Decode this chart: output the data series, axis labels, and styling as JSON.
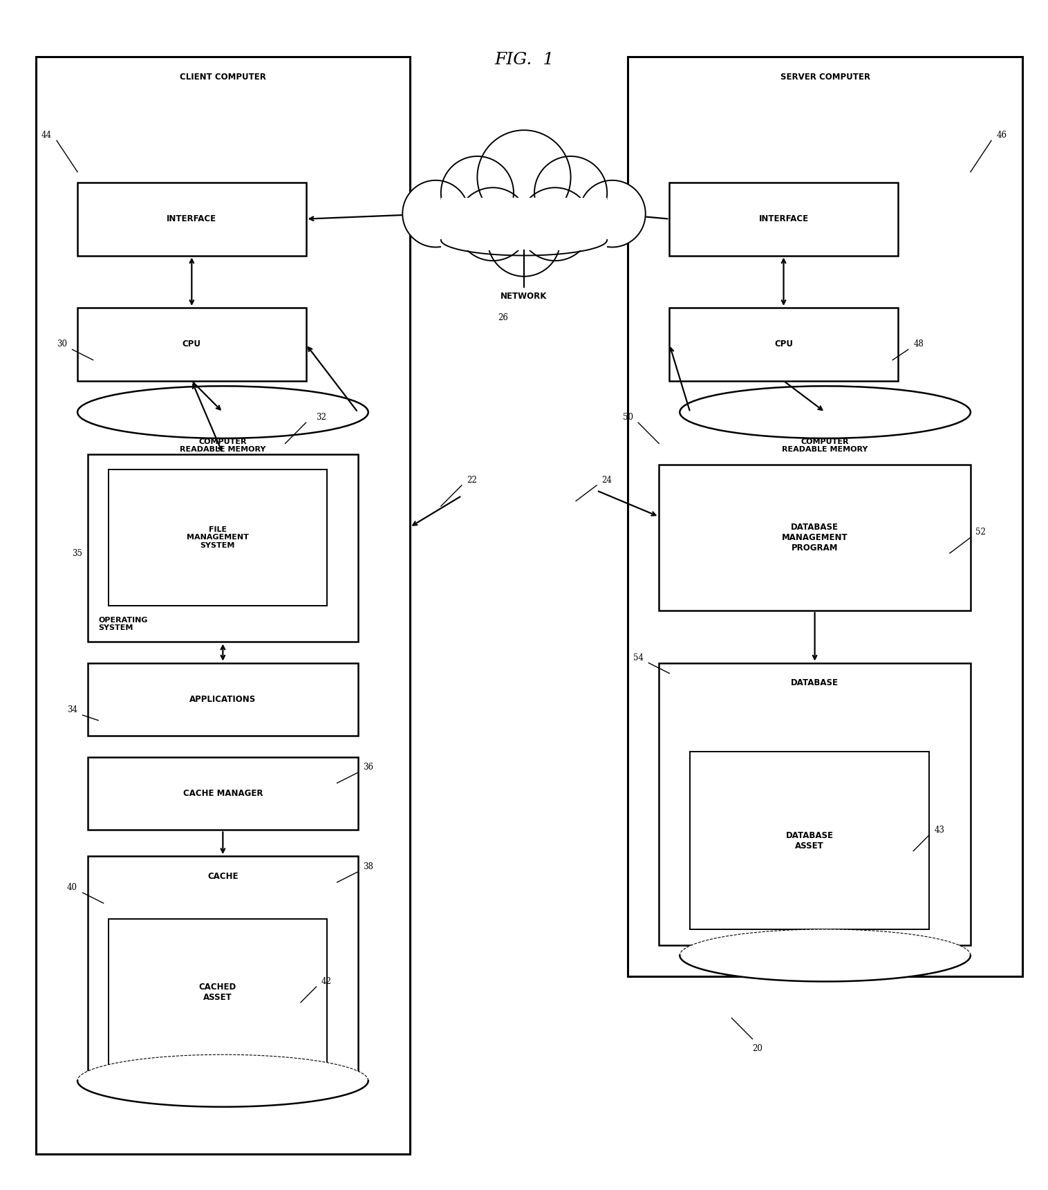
{
  "title": "FIG.  1",
  "bg_color": "#ffffff",
  "fig_width": 15.16,
  "fig_height": 17.21,
  "labels": {
    "client_computer": "CLIENT COMPUTER",
    "server_computer": "SERVER COMPUTER",
    "network": "NETWORK",
    "interface": "INTERFACE",
    "cpu": "CPU",
    "computer_readable_memory": "COMPUTER\nREADABLE MEMORY",
    "file_management_system": "FILE\nMANAGEMENT\nSYSTEM",
    "operating_system": "OPERATING\nSYSTEM",
    "applications": "APPLICATIONS",
    "cache_manager": "CACHE MANAGER",
    "cache": "CACHE",
    "cached_asset": "CACHED\nASSET",
    "database_management_program": "DATABASE\nMANAGEMENT\nPROGRAM",
    "database": "DATABASE",
    "database_asset": "DATABASE\nASSET"
  }
}
